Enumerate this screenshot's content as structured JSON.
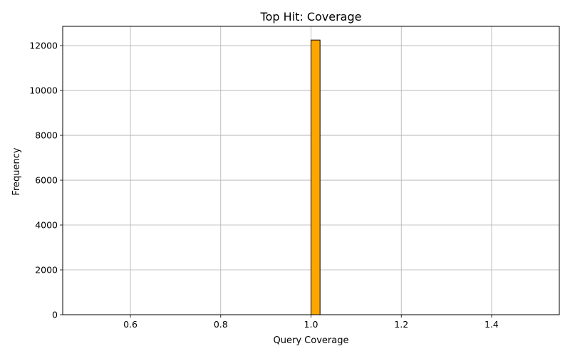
{
  "chart_data": {
    "type": "bar",
    "title": "Top Hit: Coverage",
    "xlabel": "Query Coverage",
    "ylabel": "Frequency",
    "xlim": [
      0.45,
      1.55
    ],
    "ylim": [
      0,
      12860
    ],
    "xticks": [
      0.6,
      0.8,
      1.0,
      1.2,
      1.4
    ],
    "xtick_labels": [
      "0.6",
      "0.8",
      "1.0",
      "1.2",
      "1.4"
    ],
    "yticks": [
      0,
      2000,
      4000,
      6000,
      8000,
      10000,
      12000
    ],
    "ytick_labels": [
      "0",
      "2000",
      "4000",
      "6000",
      "8000",
      "10000",
      "12000"
    ],
    "grid": true,
    "bar_color": "#ffa500",
    "edge_color": "#000000",
    "bins": {
      "range": [
        0.5,
        1.5
      ],
      "count": 50
    },
    "values": [
      {
        "x_start": 1.0,
        "x_end": 1.02,
        "count": 12250
      }
    ]
  }
}
